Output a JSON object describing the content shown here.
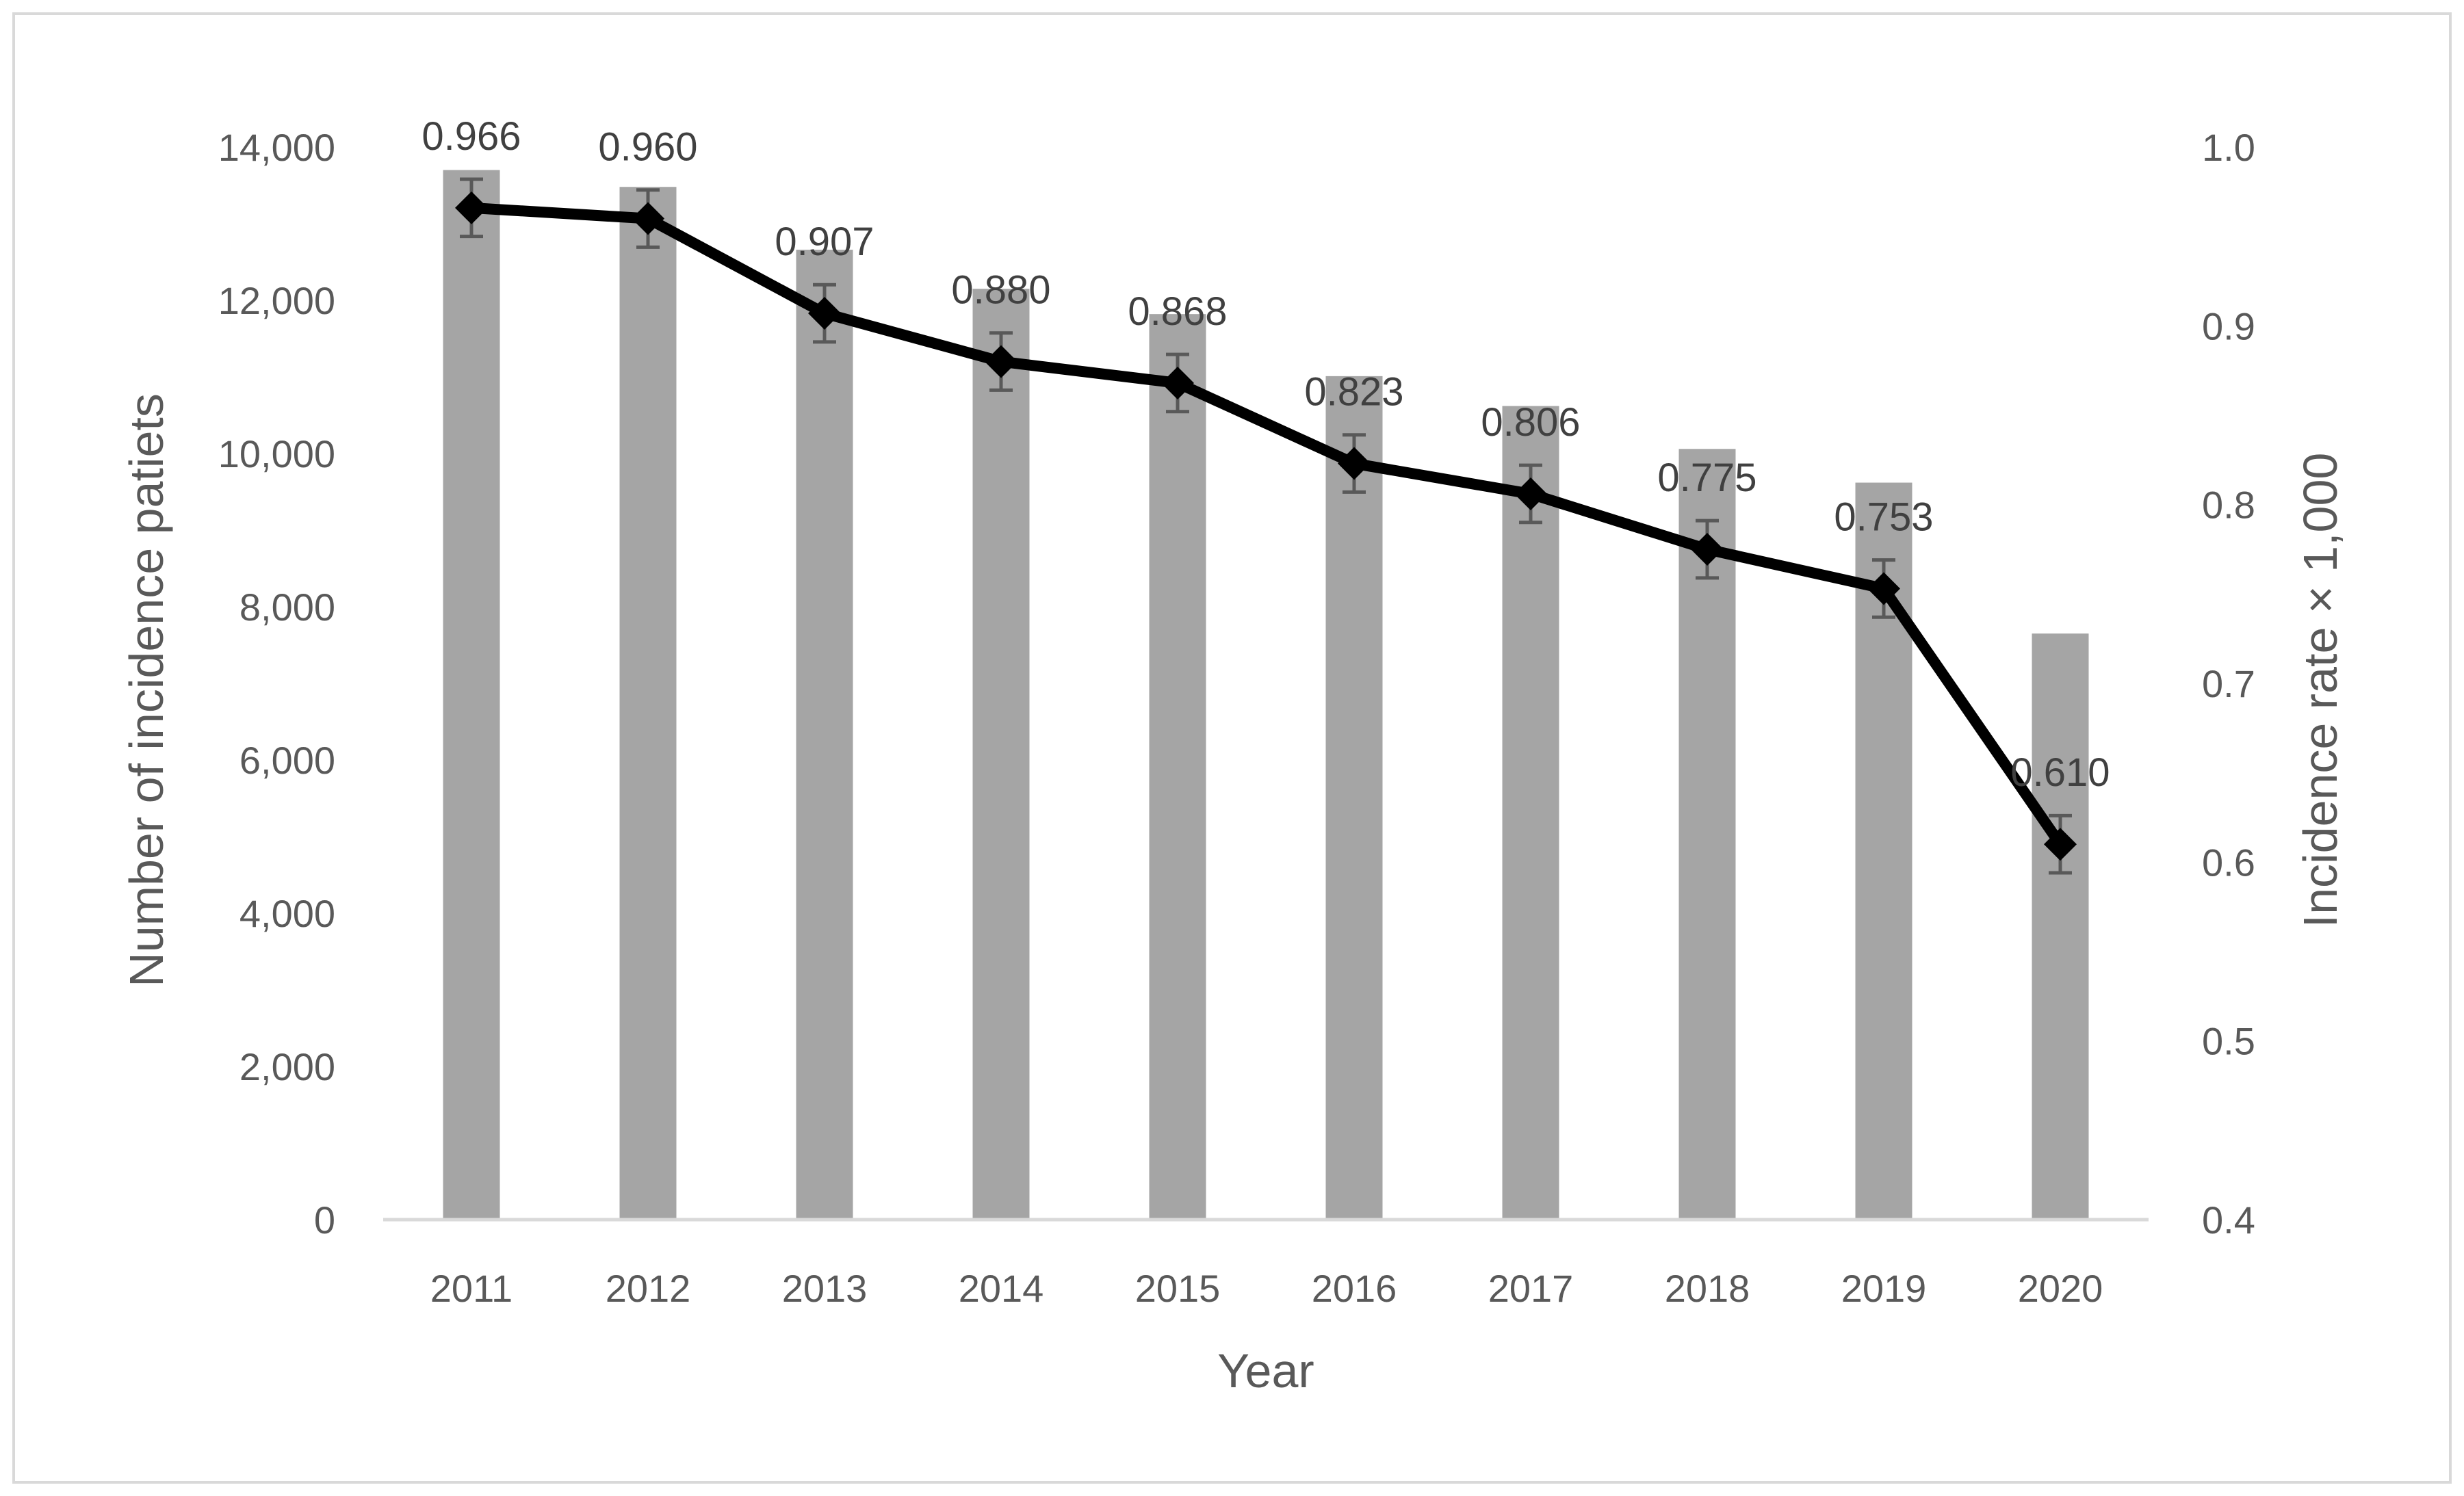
{
  "chart_data": {
    "type": "bar+line",
    "title": "",
    "categories": [
      "2011",
      "2012",
      "2013",
      "2014",
      "2015",
      "2016",
      "2017",
      "2018",
      "2019",
      "2020"
    ],
    "series": [
      {
        "name": "Number of incidence patiets",
        "type": "bar",
        "axis": "left",
        "values": [
          13700,
          13480,
          12660,
          12150,
          11820,
          11010,
          10620,
          10060,
          9620,
          7650
        ]
      },
      {
        "name": "Incidence rate × 1,000",
        "type": "line",
        "axis": "right",
        "values": [
          0.966,
          0.96,
          0.907,
          0.88,
          0.868,
          0.823,
          0.806,
          0.775,
          0.753,
          0.61
        ],
        "labels": [
          "0.966",
          "0.960",
          "0.907",
          "0.880",
          "0.868",
          "0.823",
          "0.806",
          "0.775",
          "0.753",
          "0.610"
        ],
        "error": [
          0.016,
          0.016,
          0.016,
          0.016,
          0.016,
          0.016,
          0.016,
          0.016,
          0.016,
          0.016
        ]
      }
    ],
    "xlabel": "Year",
    "ylabel": "Number of incidence patiets",
    "ylabel_right": "Incidence rate × 1,000",
    "ylim": [
      0,
      14000
    ],
    "ylim_right": [
      0.4,
      1.0
    ],
    "yticks": [
      "0",
      "2,000",
      "4,000",
      "6,000",
      "8,000",
      "10,000",
      "12,000",
      "14,000"
    ],
    "yticks_right": [
      "0.4",
      "0.5",
      "0.6",
      "0.7",
      "0.8",
      "0.9",
      "1.0"
    ],
    "grid": false,
    "legend": "none",
    "colors": {
      "bar": "#a5a5a5",
      "line": "#000000",
      "error": "#595959",
      "text": "#595959",
      "dlabel": "#404040",
      "axis": "#d9d9d9"
    }
  }
}
